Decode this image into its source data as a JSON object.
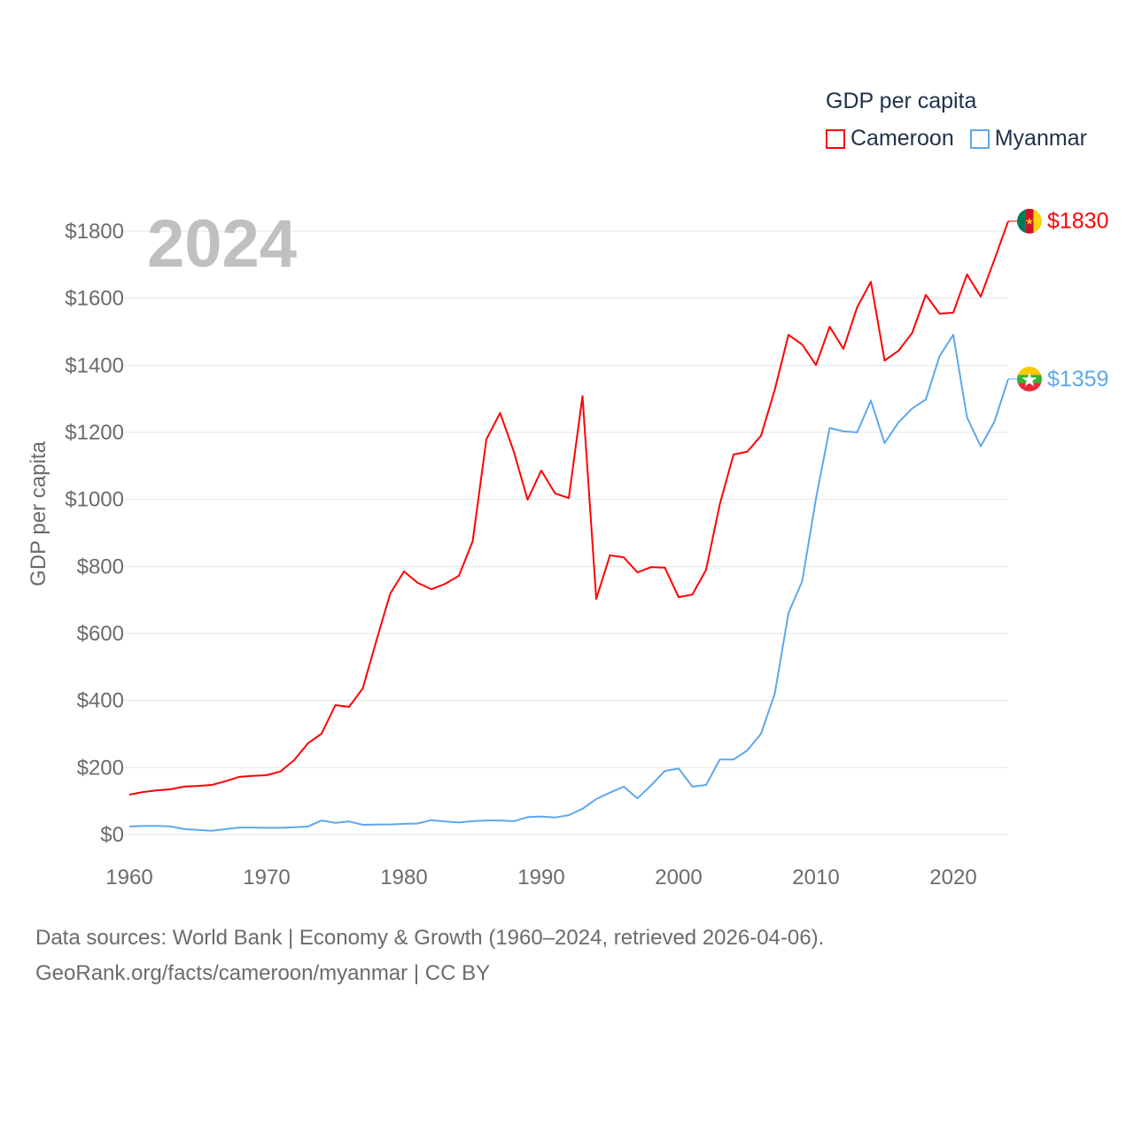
{
  "chart_data": {
    "type": "line",
    "title": "GDP per capita",
    "current_year_label": "2024",
    "xlabel": "",
    "ylabel": "GDP per capita",
    "xlim": [
      1960,
      2024
    ],
    "ylim": [
      0,
      1800
    ],
    "x_ticks": [
      "1960",
      "1970",
      "1980",
      "1990",
      "2000",
      "2010",
      "2020"
    ],
    "y_ticks": [
      "$0",
      "$200",
      "$400",
      "$600",
      "$800",
      "$1000",
      "$1200",
      "$1400",
      "$1600",
      "$1800"
    ],
    "grid": true,
    "legend_placement": "top-right",
    "x": [
      1960,
      1961,
      1962,
      1963,
      1964,
      1965,
      1966,
      1967,
      1968,
      1969,
      1970,
      1971,
      1972,
      1973,
      1974,
      1975,
      1976,
      1977,
      1978,
      1979,
      1980,
      1981,
      1982,
      1983,
      1984,
      1985,
      1986,
      1987,
      1988,
      1989,
      1990,
      1991,
      1992,
      1993,
      1994,
      1995,
      1996,
      1997,
      1998,
      1999,
      2000,
      2001,
      2002,
      2003,
      2004,
      2005,
      2006,
      2007,
      2008,
      2009,
      2010,
      2011,
      2012,
      2013,
      2014,
      2015,
      2016,
      2017,
      2018,
      2019,
      2020,
      2021,
      2022,
      2023,
      2024
    ],
    "series": [
      {
        "name": "Cameroon",
        "color": "#ff0000",
        "end_label": "$1830",
        "values": [
          119,
          127,
          132,
          135,
          143,
          145,
          148,
          159,
          172,
          175,
          177,
          188,
          222,
          272,
          301,
          386,
          381,
          436,
          580,
          719,
          785,
          751,
          732,
          748,
          772,
          875,
          1179,
          1258,
          1142,
          999,
          1086,
          1018,
          1004,
          1308,
          703,
          833,
          827,
          782,
          798,
          796,
          708,
          716,
          790,
          986,
          1134,
          1142,
          1190,
          1327,
          1491,
          1462,
          1401,
          1515,
          1449,
          1573,
          1649,
          1414,
          1443,
          1496,
          1610,
          1554,
          1557,
          1671,
          1605,
          1716,
          1830
        ]
      },
      {
        "name": "Myanmar",
        "color": "#5da8ec",
        "end_label": "$1359",
        "values": [
          24,
          26,
          26,
          24,
          16,
          14,
          11,
          16,
          21,
          21,
          20,
          20,
          22,
          24,
          42,
          35,
          39,
          29,
          30,
          30,
          32,
          33,
          43,
          39,
          36,
          40,
          42,
          42,
          40,
          52,
          54,
          51,
          58,
          77,
          106,
          125,
          143,
          108,
          147,
          190,
          197,
          143,
          148,
          224,
          224,
          251,
          301,
          420,
          661,
          756,
          1002,
          1213,
          1203,
          1200,
          1295,
          1168,
          1229,
          1271,
          1298,
          1427,
          1491,
          1245,
          1158,
          1232,
          1359
        ]
      }
    ]
  },
  "footer": {
    "line1": "Data sources: World Bank | Economy & Growth (1960–2024, retrieved 2026-04-06).",
    "line2": "GeoRank.org/facts/cameroon/myanmar | CC BY"
  }
}
